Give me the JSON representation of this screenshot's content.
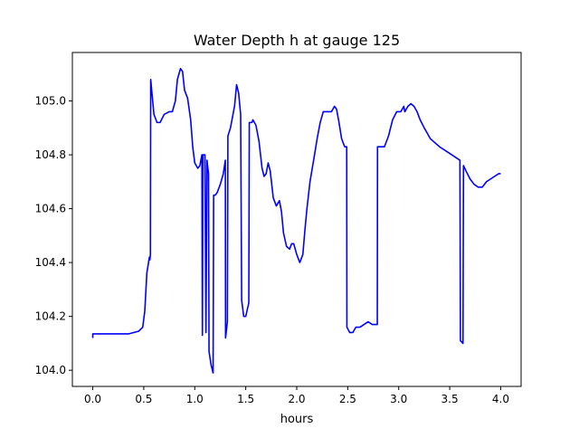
{
  "chart_data": {
    "type": "line",
    "title": "Water Depth h at gauge 125",
    "xlabel": "hours",
    "ylabel": "",
    "xlim": [
      -0.2,
      4.2
    ],
    "ylim": [
      103.94,
      105.18
    ],
    "xticks": [
      0.0,
      0.5,
      1.0,
      1.5,
      2.0,
      2.5,
      3.0,
      3.5,
      4.0
    ],
    "xtick_labels": [
      "0.0",
      "0.5",
      "1.0",
      "1.5",
      "2.0",
      "2.5",
      "3.0",
      "3.5",
      "4.0"
    ],
    "yticks": [
      104.0,
      104.2,
      104.4,
      104.6,
      104.8,
      105.0
    ],
    "ytick_labels": [
      "104.0",
      "104.2",
      "104.4",
      "104.6",
      "104.8",
      "105.0"
    ],
    "grid": false,
    "legend": "none",
    "series": [
      {
        "color": "#0000ff",
        "points": [
          [
            0.0,
            104.12
          ],
          [
            0.0,
            104.135
          ],
          [
            0.2,
            104.135
          ],
          [
            0.35,
            104.135
          ],
          [
            0.45,
            104.145
          ],
          [
            0.49,
            104.16
          ],
          [
            0.51,
            104.22
          ],
          [
            0.53,
            104.36
          ],
          [
            0.555,
            104.42
          ],
          [
            0.56,
            104.41
          ],
          [
            0.565,
            104.43
          ],
          [
            0.568,
            105.08
          ],
          [
            0.58,
            105.03
          ],
          [
            0.6,
            104.95
          ],
          [
            0.63,
            104.92
          ],
          [
            0.66,
            104.92
          ],
          [
            0.7,
            104.95
          ],
          [
            0.75,
            104.96
          ],
          [
            0.78,
            104.96
          ],
          [
            0.81,
            105.0
          ],
          [
            0.83,
            105.08
          ],
          [
            0.86,
            105.12
          ],
          [
            0.88,
            105.11
          ],
          [
            0.9,
            105.04
          ],
          [
            0.93,
            105.01
          ],
          [
            0.96,
            104.93
          ],
          [
            0.98,
            104.83
          ],
          [
            1.0,
            104.77
          ],
          [
            1.03,
            104.75
          ],
          [
            1.05,
            104.76
          ],
          [
            1.07,
            104.8
          ],
          [
            1.075,
            104.13
          ],
          [
            1.08,
            104.8
          ],
          [
            1.1,
            104.8
          ],
          [
            1.11,
            104.14
          ],
          [
            1.12,
            104.78
          ],
          [
            1.135,
            104.73
          ],
          [
            1.14,
            104.07
          ],
          [
            1.16,
            104.02
          ],
          [
            1.18,
            103.99
          ],
          [
            1.185,
            104.65
          ],
          [
            1.2,
            104.65
          ],
          [
            1.22,
            104.66
          ],
          [
            1.25,
            104.69
          ],
          [
            1.28,
            104.73
          ],
          [
            1.3,
            104.78
          ],
          [
            1.302,
            104.12
          ],
          [
            1.32,
            104.18
          ],
          [
            1.325,
            104.87
          ],
          [
            1.35,
            104.9
          ],
          [
            1.37,
            104.94
          ],
          [
            1.39,
            104.98
          ],
          [
            1.41,
            105.06
          ],
          [
            1.43,
            105.03
          ],
          [
            1.45,
            104.95
          ],
          [
            1.46,
            104.26
          ],
          [
            1.48,
            104.2
          ],
          [
            1.5,
            104.2
          ],
          [
            1.53,
            104.25
          ],
          [
            1.535,
            104.92
          ],
          [
            1.56,
            104.92
          ],
          [
            1.57,
            104.93
          ],
          [
            1.6,
            104.91
          ],
          [
            1.63,
            104.85
          ],
          [
            1.66,
            104.75
          ],
          [
            1.68,
            104.72
          ],
          [
            1.7,
            104.73
          ],
          [
            1.72,
            104.77
          ],
          [
            1.74,
            104.74
          ],
          [
            1.77,
            104.64
          ],
          [
            1.8,
            104.61
          ],
          [
            1.83,
            104.63
          ],
          [
            1.85,
            104.59
          ],
          [
            1.87,
            104.51
          ],
          [
            1.9,
            104.46
          ],
          [
            1.93,
            104.45
          ],
          [
            1.95,
            104.47
          ],
          [
            1.97,
            104.47
          ],
          [
            2.0,
            104.43
          ],
          [
            2.03,
            104.4
          ],
          [
            2.06,
            104.43
          ],
          [
            2.08,
            104.52
          ],
          [
            2.1,
            104.6
          ],
          [
            2.13,
            104.7
          ],
          [
            2.17,
            104.79
          ],
          [
            2.2,
            104.86
          ],
          [
            2.23,
            104.92
          ],
          [
            2.26,
            104.96
          ],
          [
            2.3,
            104.96
          ],
          [
            2.34,
            104.96
          ],
          [
            2.37,
            104.98
          ],
          [
            2.39,
            104.97
          ],
          [
            2.41,
            104.93
          ],
          [
            2.44,
            104.86
          ],
          [
            2.47,
            104.83
          ],
          [
            2.49,
            104.83
          ],
          [
            2.492,
            104.16
          ],
          [
            2.52,
            104.14
          ],
          [
            2.55,
            104.14
          ],
          [
            2.58,
            104.16
          ],
          [
            2.62,
            104.16
          ],
          [
            2.66,
            104.17
          ],
          [
            2.7,
            104.18
          ],
          [
            2.74,
            104.17
          ],
          [
            2.78,
            104.17
          ],
          [
            2.79,
            104.17
          ],
          [
            2.792,
            104.83
          ],
          [
            2.82,
            104.83
          ],
          [
            2.86,
            104.83
          ],
          [
            2.9,
            104.87
          ],
          [
            2.94,
            104.93
          ],
          [
            2.98,
            104.96
          ],
          [
            3.02,
            104.96
          ],
          [
            3.05,
            104.98
          ],
          [
            3.06,
            104.96
          ],
          [
            3.09,
            104.98
          ],
          [
            3.12,
            104.99
          ],
          [
            3.15,
            104.98
          ],
          [
            3.18,
            104.96
          ],
          [
            3.21,
            104.93
          ],
          [
            3.25,
            104.9
          ],
          [
            3.28,
            104.88
          ],
          [
            3.31,
            104.86
          ],
          [
            3.34,
            104.85
          ],
          [
            3.37,
            104.84
          ],
          [
            3.4,
            104.83
          ],
          [
            3.44,
            104.82
          ],
          [
            3.48,
            104.81
          ],
          [
            3.52,
            104.8
          ],
          [
            3.56,
            104.79
          ],
          [
            3.6,
            104.78
          ],
          [
            3.605,
            104.11
          ],
          [
            3.63,
            104.1
          ],
          [
            3.635,
            104.76
          ],
          [
            3.66,
            104.74
          ],
          [
            3.7,
            104.71
          ],
          [
            3.74,
            104.69
          ],
          [
            3.78,
            104.68
          ],
          [
            3.82,
            104.68
          ],
          [
            3.86,
            104.7
          ],
          [
            3.9,
            104.71
          ],
          [
            3.94,
            104.72
          ],
          [
            3.98,
            104.73
          ],
          [
            4.0,
            104.73
          ]
        ]
      }
    ]
  }
}
